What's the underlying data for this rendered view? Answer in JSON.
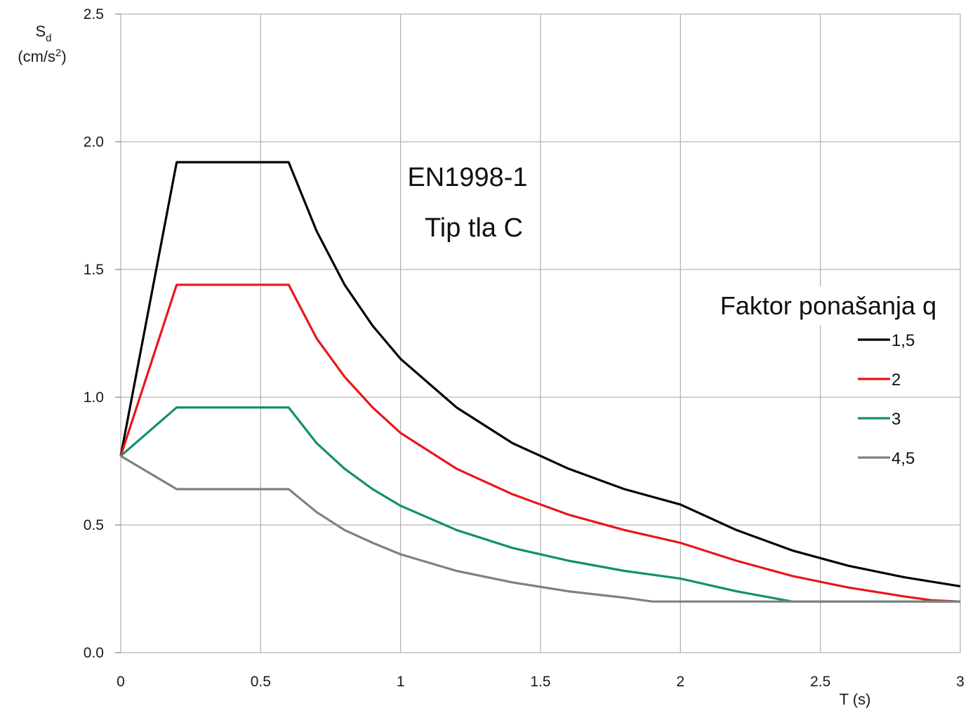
{
  "chart_data": {
    "type": "line",
    "title": "",
    "xlabel": "T (s)",
    "ylabel": {
      "main": "S",
      "sub": "d",
      "unit_prefix": "(cm/s",
      "unit_sup": "2",
      "unit_suffix": ")"
    },
    "xlim": [
      0,
      3
    ],
    "ylim": [
      0,
      2.5
    ],
    "x_ticks": [
      0,
      0.5,
      1,
      1.5,
      2,
      2.5,
      3
    ],
    "x_tick_labels": [
      "0",
      "0.5",
      "1",
      "1.5",
      "2",
      "2.5",
      "3"
    ],
    "y_ticks": [
      0,
      0.5,
      1.0,
      1.5,
      2.0,
      2.5
    ],
    "y_tick_labels": [
      "0.0",
      "0.5",
      "1.0",
      "1.5",
      "2.0",
      "2.5"
    ],
    "grid": true,
    "annotations": [
      "EN1998-1",
      "Tip tla C"
    ],
    "legend": {
      "title": "Faktor ponašanja q",
      "placement": "right"
    },
    "series": [
      {
        "name": "1,5",
        "color": "#000000",
        "x": [
          0,
          0.2,
          0.6,
          0.7,
          0.8,
          0.9,
          1.0,
          1.2,
          1.4,
          1.6,
          1.8,
          2.0,
          2.2,
          2.4,
          2.6,
          2.8,
          3.0
        ],
        "y": [
          0.77,
          1.92,
          1.92,
          1.65,
          1.44,
          1.28,
          1.15,
          0.96,
          0.82,
          0.72,
          0.64,
          0.58,
          0.48,
          0.4,
          0.34,
          0.295,
          0.26
        ]
      },
      {
        "name": "2",
        "color": "#e8161b",
        "x": [
          0,
          0.2,
          0.6,
          0.7,
          0.8,
          0.9,
          1.0,
          1.2,
          1.4,
          1.6,
          1.8,
          2.0,
          2.2,
          2.4,
          2.6,
          2.8,
          2.9,
          3.0
        ],
        "y": [
          0.77,
          1.44,
          1.44,
          1.23,
          1.08,
          0.96,
          0.86,
          0.72,
          0.62,
          0.54,
          0.48,
          0.43,
          0.36,
          0.3,
          0.255,
          0.22,
          0.205,
          0.2
        ]
      },
      {
        "name": "3",
        "color": "#13906a",
        "x": [
          0,
          0.2,
          0.6,
          0.7,
          0.8,
          0.9,
          1.0,
          1.2,
          1.4,
          1.6,
          1.8,
          2.0,
          2.2,
          2.4,
          2.6,
          2.8,
          3.0
        ],
        "y": [
          0.77,
          0.96,
          0.96,
          0.82,
          0.72,
          0.64,
          0.575,
          0.48,
          0.41,
          0.36,
          0.32,
          0.29,
          0.24,
          0.2,
          0.2,
          0.2,
          0.2
        ]
      },
      {
        "name": "4,5",
        "color": "#808080",
        "x": [
          0,
          0.2,
          0.6,
          0.7,
          0.8,
          0.9,
          1.0,
          1.2,
          1.4,
          1.6,
          1.8,
          1.9,
          2.0,
          2.5,
          3.0
        ],
        "y": [
          0.77,
          0.64,
          0.64,
          0.55,
          0.48,
          0.43,
          0.385,
          0.32,
          0.275,
          0.24,
          0.215,
          0.2,
          0.2,
          0.2,
          0.2
        ]
      }
    ]
  }
}
